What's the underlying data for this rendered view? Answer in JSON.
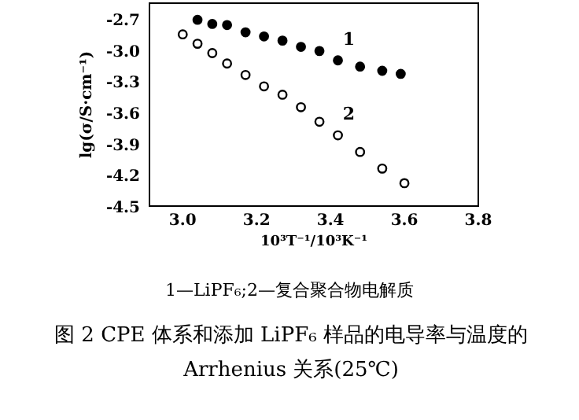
{
  "chart_data": {
    "type": "scatter",
    "title": "图 2  CPE 体系和添加 LiPF₆ 样品的电导率与温度的 Arrhenius 关系(25℃)",
    "xlabel": "10³T⁻¹/10³K⁻¹",
    "ylabel": "lg(σ/S·cm⁻¹)",
    "annotations": [
      "1—LiPF₆;2—复合聚合物电解质"
    ],
    "marker": "circle",
    "grid": false,
    "xlim": [
      2.91,
      3.8
    ],
    "xticks": [
      {
        "value": 3.0,
        "label": "3.0"
      },
      3.2,
      3.4,
      3.6,
      3.8
    ],
    "ylim": [
      -4.5,
      -2.55
    ],
    "yticks": [
      {
        "value": -2.7,
        "label": "-2.7"
      },
      {
        "value": -3.0,
        "label": "-3.0"
      },
      {
        "value": -3.3,
        "label": "-3.3"
      },
      {
        "value": -3.6,
        "label": "-3.6"
      },
      {
        "value": -3.9,
        "label": "-3.9"
      },
      {
        "value": -4.2,
        "label": "-4.2"
      },
      {
        "value": -4.5,
        "label": "-4.5"
      }
    ],
    "series": [
      {
        "name": "1",
        "color": "#000000",
        "x": [
          3.04,
          3.08,
          3.12,
          3.17,
          3.22,
          3.27,
          3.32,
          3.37,
          3.42,
          3.48,
          3.54,
          3.59
        ],
        "values": [
          -2.71,
          -2.75,
          -2.76,
          -2.83,
          -2.87,
          -2.91,
          -2.97,
          -3.01,
          -3.1,
          -3.16,
          -3.2,
          -3.23
        ]
      },
      {
        "name": "2",
        "color": "#000000",
        "x": [
          3.0,
          3.04,
          3.08,
          3.12,
          3.17,
          3.22,
          3.27,
          3.32,
          3.37,
          3.42,
          3.48,
          3.54,
          3.6
        ],
        "values": [
          -2.85,
          -2.94,
          -3.03,
          -3.13,
          -3.24,
          -3.35,
          -3.43,
          -3.55,
          -3.69,
          -3.82,
          -3.98,
          -4.14,
          -4.28
        ]
      }
    ]
  }
}
